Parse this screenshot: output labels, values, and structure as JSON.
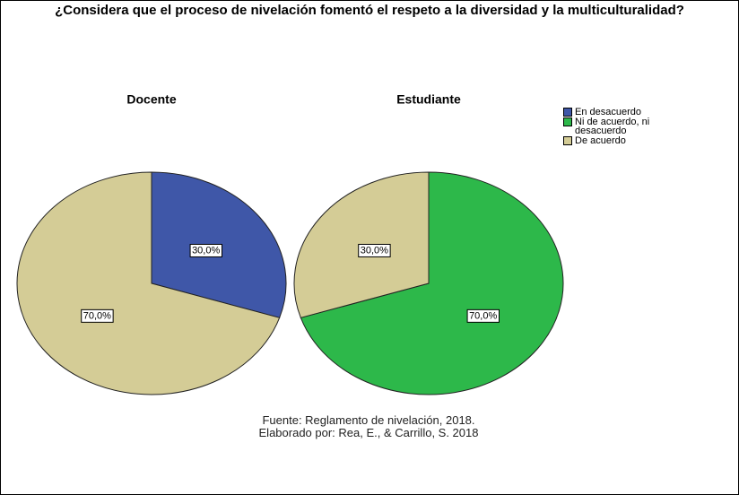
{
  "title": "¿Considera que el proceso de nivelación fomentó el respeto a la diversidad y la multiculturalidad?",
  "chart_data": [
    {
      "type": "pie",
      "title": "Docente",
      "categories": [
        "En desacuerdo",
        "De acuerdo"
      ],
      "values": [
        30,
        70
      ],
      "value_labels": [
        "30,0%",
        "70,0%"
      ],
      "colors": [
        "#3f57a8",
        "#d4cc96"
      ]
    },
    {
      "type": "pie",
      "title": "Estudiante",
      "categories": [
        "Ni de acuerdo, ni desacuerdo",
        "De acuerdo"
      ],
      "values": [
        70,
        30
      ],
      "value_labels": [
        "70,0%",
        "30,0%"
      ],
      "colors": [
        "#2db84a",
        "#d4cc96"
      ]
    }
  ],
  "legend": {
    "position": "top-right",
    "items": [
      {
        "name": "En desacuerdo",
        "color": "#3f57a8"
      },
      {
        "name": "Ni de acuerdo, ni desacuerdo",
        "color": "#2db84a"
      },
      {
        "name": "De acuerdo",
        "color": "#d4cc96"
      }
    ]
  },
  "source": [
    "Fuente: Reglamento de nivelación, 2018.",
    "Elaborado por: Rea, E., & Carrillo, S. 2018"
  ]
}
